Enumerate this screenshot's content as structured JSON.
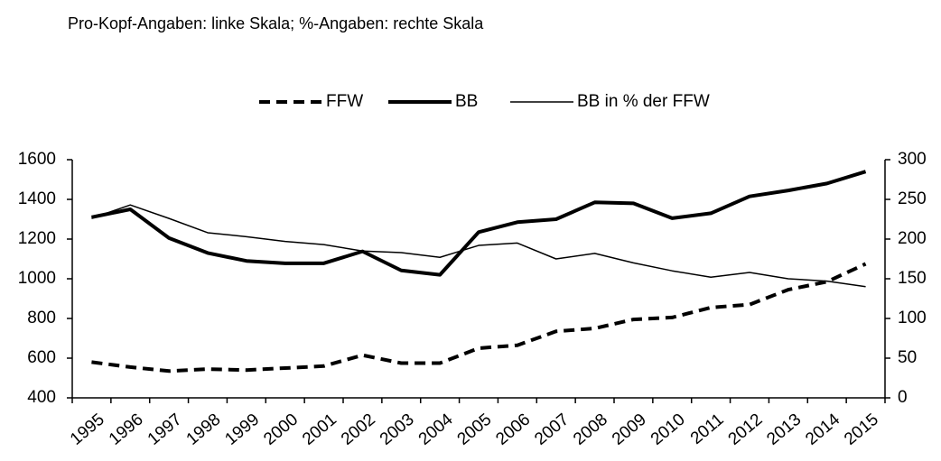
{
  "chart_data": {
    "type": "line",
    "title": "Pro-Kopf-Angaben: linke Skala; %-Angaben: rechte Skala",
    "categories": [
      "1995",
      "1996",
      "1997",
      "1998",
      "1999",
      "2000",
      "2001",
      "2002",
      "2003",
      "2004",
      "2005",
      "2006",
      "2007",
      "2008",
      "2009",
      "2010",
      "2011",
      "2012",
      "2013",
      "2014",
      "2015"
    ],
    "series": [
      {
        "name": "FFW",
        "color": "#000000",
        "style": "dashed",
        "width": 4,
        "axis": "y",
        "values": [
          580,
          555,
          535,
          545,
          540,
          550,
          560,
          615,
          575,
          575,
          650,
          665,
          735,
          750,
          795,
          805,
          855,
          870,
          945,
          985,
          1075
        ]
      },
      {
        "name": "BB",
        "color": "#000000",
        "style": "solid",
        "width": 4,
        "axis": "y",
        "values": [
          1310,
          1350,
          1205,
          1130,
          1090,
          1078,
          1078,
          1138,
          1042,
          1020,
          1235,
          1285,
          1300,
          1385,
          1380,
          1305,
          1330,
          1415,
          1445,
          1480,
          1540
        ]
      },
      {
        "name": "BB in % der FFW",
        "color": "#000000",
        "style": "solid",
        "width": 1.5,
        "axis": "y2",
        "values": [
          226,
          243,
          226,
          208,
          203,
          197,
          193,
          185,
          183,
          177,
          192,
          195,
          175,
          182,
          170,
          160,
          152,
          158,
          150,
          147,
          140
        ]
      }
    ],
    "ylim": [
      400,
      1600
    ],
    "yticks": [
      400,
      600,
      800,
      1000,
      1200,
      1400,
      1600
    ],
    "y2lim": [
      0,
      300
    ],
    "y2ticks": [
      0,
      50,
      100,
      150,
      200,
      250,
      300
    ],
    "legend": "top",
    "grid": false
  }
}
